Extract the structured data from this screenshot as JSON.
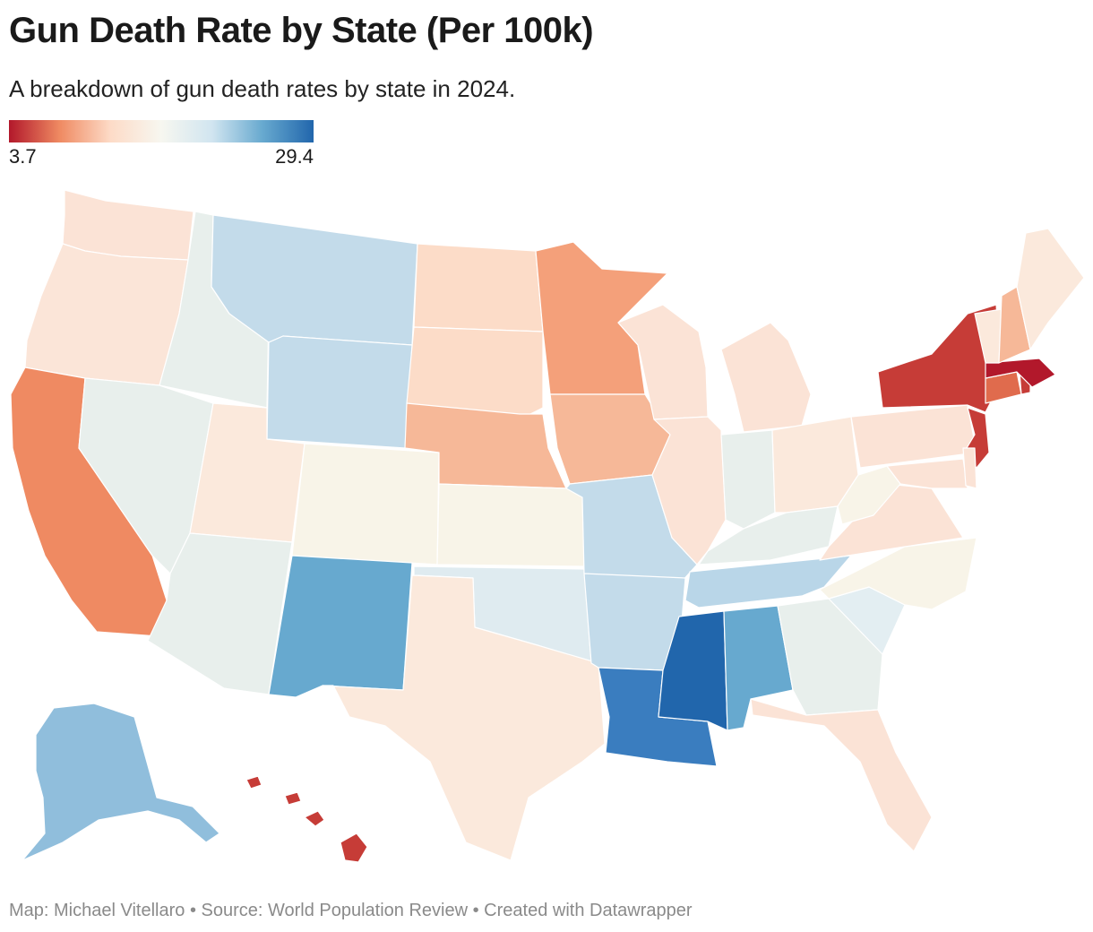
{
  "header": {
    "title": "Gun Death Rate by State (Per 100k)",
    "subtitle": "A breakdown of gun death rates by state in 2024."
  },
  "legend": {
    "min_label": "3.7",
    "max_label": "29.4",
    "min_value": 3.7,
    "max_value": 29.4,
    "stops": [
      "#b2182b",
      "#ef8a62",
      "#fddbc7",
      "#f7f7f0",
      "#d1e5f0",
      "#67a9cf",
      "#2166ac"
    ]
  },
  "map_data": {
    "type": "choropleth",
    "region": "United States",
    "palette": {
      "red_deep": "#b2182b",
      "red": "#c63c37",
      "orange": "#ef8a62",
      "salmon": "#f4a582",
      "peach": "#fddbc7",
      "cream": "#f8f4e8",
      "pale_blue": "#e3eef2",
      "light_blue": "#c3dbea",
      "blue": "#67a9cf",
      "mid_blue": "#3a7dbf",
      "deep_blue": "#2166ac"
    },
    "states": [
      {
        "code": "WA",
        "color": "#fbe3d6"
      },
      {
        "code": "OR",
        "color": "#fbe5d8"
      },
      {
        "code": "CA",
        "color": "#ef8a62"
      },
      {
        "code": "ID",
        "color": "#e8efec"
      },
      {
        "code": "NV",
        "color": "#e8efec"
      },
      {
        "code": "MT",
        "color": "#c3dbea"
      },
      {
        "code": "WY",
        "color": "#c3dbea"
      },
      {
        "code": "UT",
        "color": "#fbe9dc"
      },
      {
        "code": "AZ",
        "color": "#e8efec"
      },
      {
        "code": "CO",
        "color": "#f8f4e8"
      },
      {
        "code": "NM",
        "color": "#67a9cf"
      },
      {
        "code": "ND",
        "color": "#fcdcc8"
      },
      {
        "code": "SD",
        "color": "#fcdcc8"
      },
      {
        "code": "NE",
        "color": "#f6b898"
      },
      {
        "code": "KS",
        "color": "#f8f4e8"
      },
      {
        "code": "OK",
        "color": "#dfebf0"
      },
      {
        "code": "TX",
        "color": "#fbe9dc"
      },
      {
        "code": "MN",
        "color": "#f4a07a"
      },
      {
        "code": "IA",
        "color": "#f6b898"
      },
      {
        "code": "MO",
        "color": "#c3dbea"
      },
      {
        "code": "AR",
        "color": "#c3dbea"
      },
      {
        "code": "LA",
        "color": "#3a7dbf"
      },
      {
        "code": "WI",
        "color": "#fbe3d6"
      },
      {
        "code": "IL",
        "color": "#fbe3d6"
      },
      {
        "code": "MI",
        "color": "#fbe3d6"
      },
      {
        "code": "IN",
        "color": "#e8efec"
      },
      {
        "code": "OH",
        "color": "#fbe9dc"
      },
      {
        "code": "KY",
        "color": "#e8efec"
      },
      {
        "code": "TN",
        "color": "#b9d6e8"
      },
      {
        "code": "MS",
        "color": "#2166ac"
      },
      {
        "code": "AL",
        "color": "#67a9cf"
      },
      {
        "code": "GA",
        "color": "#e8efec"
      },
      {
        "code": "FL",
        "color": "#fbe3d6"
      },
      {
        "code": "SC",
        "color": "#e3eef2"
      },
      {
        "code": "NC",
        "color": "#f8f4e8"
      },
      {
        "code": "VA",
        "color": "#fbe3d6"
      },
      {
        "code": "WV",
        "color": "#f8f4e8"
      },
      {
        "code": "PA",
        "color": "#fbe3d6"
      },
      {
        "code": "NY",
        "color": "#c63c37"
      },
      {
        "code": "NJ",
        "color": "#c63c37"
      },
      {
        "code": "MD",
        "color": "#fbe3d6"
      },
      {
        "code": "DE",
        "color": "#fbe3d6"
      },
      {
        "code": "CT",
        "color": "#e06b4d"
      },
      {
        "code": "RI",
        "color": "#c63c37"
      },
      {
        "code": "MA",
        "color": "#b2182b"
      },
      {
        "code": "VT",
        "color": "#fbe9dc"
      },
      {
        "code": "NH",
        "color": "#f6b898"
      },
      {
        "code": "ME",
        "color": "#fbe9dc"
      },
      {
        "code": "AK",
        "color": "#90bedc"
      },
      {
        "code": "HI",
        "color": "#c63c37"
      }
    ]
  },
  "footer": {
    "credit": "Map: Michael Vitellaro • Source: World Population Review • Created with Datawrapper"
  }
}
